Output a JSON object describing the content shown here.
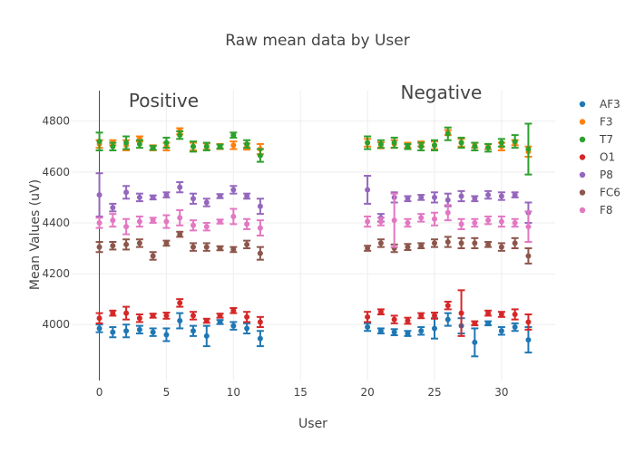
{
  "chart_data": {
    "type": "scatter",
    "title": "Raw mean data by User",
    "xlabel": "User",
    "ylabel": "Mean Values (uV)",
    "xlim": [
      -2,
      34
    ],
    "ylim": [
      3780,
      4920
    ],
    "xticks": [
      0,
      5,
      10,
      15,
      20,
      25,
      30
    ],
    "yticks": [
      4000,
      4200,
      4400,
      4600,
      4800
    ],
    "grid": true,
    "legend_position": "top-right",
    "annotations": [
      {
        "text": "Positive",
        "x": 4.8,
        "y": 4855
      },
      {
        "text": "Negative",
        "x": 25.5,
        "y": 4888
      }
    ],
    "x": [
      0,
      1,
      2,
      3,
      4,
      5,
      6,
      7,
      8,
      9,
      10,
      11,
      12,
      20,
      21,
      22,
      23,
      24,
      25,
      26,
      27,
      28,
      29,
      30,
      31,
      32
    ],
    "series": [
      {
        "name": "AF3",
        "color": "#1f77b4",
        "values": [
          3985,
          3970,
          3975,
          3980,
          3970,
          3960,
          4015,
          3975,
          3955,
          4010,
          3995,
          3985,
          3945,
          3990,
          3975,
          3970,
          3965,
          3975,
          3985,
          4020,
          3995,
          3930,
          4005,
          3975,
          3990,
          3940
        ],
        "errors": [
          15,
          20,
          25,
          15,
          15,
          25,
          30,
          20,
          40,
          8,
          15,
          20,
          30,
          15,
          10,
          12,
          10,
          15,
          40,
          25,
          30,
          55,
          8,
          15,
          15,
          50
        ]
      },
      {
        "name": "F3",
        "color": "#ff7f0e",
        "values": [
          4710,
          4715,
          4705,
          4730,
          4695,
          4700,
          4760,
          4700,
          4700,
          4700,
          4705,
          4700,
          4690,
          4715,
          4705,
          4710,
          4705,
          4710,
          4705,
          4755,
          4715,
          4705,
          4700,
          4700,
          4715,
          4680
        ],
        "errors": [
          15,
          10,
          20,
          10,
          10,
          15,
          12,
          15,
          12,
          10,
          15,
          12,
          20,
          15,
          12,
          15,
          10,
          10,
          15,
          10,
          15,
          10,
          10,
          15,
          10,
          20
        ]
      },
      {
        "name": "T7",
        "color": "#2ca02c",
        "values": [
          4720,
          4700,
          4715,
          4710,
          4695,
          4715,
          4745,
          4700,
          4700,
          4700,
          4745,
          4710,
          4665,
          4715,
          4710,
          4715,
          4700,
          4700,
          4705,
          4750,
          4715,
          4700,
          4695,
          4715,
          4720,
          4690
        ],
        "errors": [
          35,
          15,
          25,
          15,
          8,
          20,
          15,
          20,
          15,
          8,
          10,
          15,
          25,
          25,
          15,
          20,
          10,
          15,
          20,
          25,
          20,
          15,
          15,
          15,
          25,
          100
        ]
      },
      {
        "name": "O1",
        "color": "#d62728",
        "values": [
          4025,
          4045,
          4045,
          4025,
          4035,
          4035,
          4085,
          4035,
          4015,
          4035,
          4055,
          4030,
          4010,
          4030,
          4050,
          4020,
          4015,
          4035,
          4035,
          4075,
          4045,
          4005,
          4045,
          4040,
          4040,
          4010
        ],
        "errors": [
          20,
          10,
          25,
          15,
          8,
          12,
          15,
          15,
          8,
          8,
          10,
          20,
          20,
          20,
          10,
          15,
          12,
          10,
          12,
          15,
          90,
          8,
          10,
          10,
          20,
          30
        ]
      },
      {
        "name": "P8",
        "color": "#9467bd",
        "values": [
          4510,
          4460,
          4520,
          4500,
          4500,
          4510,
          4540,
          4495,
          4480,
          4505,
          4530,
          4505,
          4465,
          4530,
          4420,
          4500,
          4495,
          4500,
          4500,
          4490,
          4505,
          4495,
          4510,
          4505,
          4510,
          4440
        ],
        "errors": [
          85,
          15,
          25,
          15,
          8,
          10,
          20,
          20,
          15,
          8,
          15,
          10,
          30,
          55,
          15,
          20,
          10,
          10,
          20,
          25,
          20,
          10,
          15,
          15,
          10,
          40
        ]
      },
      {
        "name": "FC6",
        "color": "#8c564b",
        "values": [
          4305,
          4310,
          4315,
          4320,
          4270,
          4320,
          4355,
          4305,
          4305,
          4300,
          4295,
          4315,
          4280,
          4300,
          4320,
          4300,
          4305,
          4310,
          4320,
          4325,
          4320,
          4320,
          4315,
          4305,
          4320,
          4270
        ],
        "errors": [
          20,
          15,
          20,
          15,
          15,
          10,
          10,
          15,
          15,
          8,
          10,
          15,
          25,
          10,
          15,
          15,
          12,
          10,
          15,
          20,
          20,
          20,
          10,
          15,
          20,
          30
        ]
      },
      {
        "name": "F8",
        "color": "#e377c2",
        "values": [
          4400,
          4410,
          4385,
          4405,
          4410,
          4405,
          4420,
          4390,
          4385,
          4405,
          4425,
          4395,
          4380,
          4405,
          4405,
          4410,
          4400,
          4420,
          4415,
          4440,
          4395,
          4400,
          4410,
          4405,
          4400,
          4385
        ],
        "errors": [
          20,
          25,
          30,
          20,
          10,
          25,
          30,
          20,
          15,
          8,
          30,
          20,
          30,
          20,
          15,
          105,
          15,
          15,
          25,
          30,
          20,
          15,
          15,
          20,
          15,
          60
        ]
      }
    ]
  }
}
